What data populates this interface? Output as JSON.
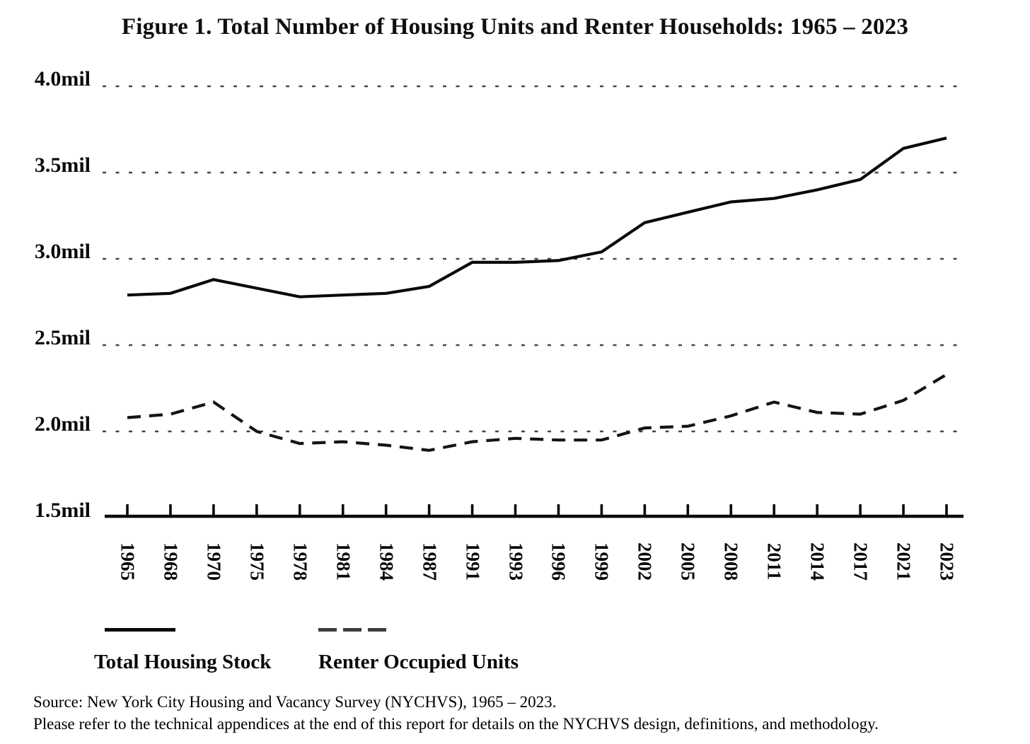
{
  "title": "Figure 1. Total Number of Housing Units and Renter Households: 1965 – 2023",
  "legend": {
    "series1_label": "Total Housing Stock",
    "series2_label": "Renter Occupied Units"
  },
  "source": {
    "line1": "Source: New York City Housing and Vacancy Survey (NYCHVS), 1965 – 2023.",
    "line2": "Please refer to the technical appendices at the end of this report for details on the NYCHVS design, definitions, and methodology."
  },
  "colors": {
    "background": "#ffffff",
    "solid_line": "#0a0a0a",
    "dashed_line": "#141414",
    "grid": "#474747",
    "text": "#0a0a0a"
  },
  "chart_data": {
    "type": "line",
    "title": "Figure 1. Total Number of Housing Units and Renter Households: 1965 – 2023",
    "x": [
      1965,
      1968,
      1970,
      1975,
      1978,
      1981,
      1984,
      1987,
      1991,
      1993,
      1996,
      1999,
      2002,
      2005,
      2008,
      2011,
      2014,
      2017,
      2021,
      2023
    ],
    "series": [
      {
        "name": "Total Housing Stock",
        "style": "solid",
        "color": "#0a0a0a",
        "unit": "millions",
        "values": [
          2.79,
          2.8,
          2.88,
          2.83,
          2.78,
          2.79,
          2.8,
          2.84,
          2.98,
          2.98,
          2.99,
          3.04,
          3.21,
          3.27,
          3.33,
          3.35,
          3.4,
          3.46,
          3.64,
          3.7
        ]
      },
      {
        "name": "Renter Occupied Units",
        "style": "dashed",
        "color": "#141414",
        "unit": "millions",
        "values": [
          2.08,
          2.1,
          2.17,
          2.0,
          1.93,
          1.94,
          1.92,
          1.89,
          1.94,
          1.96,
          1.95,
          1.95,
          2.02,
          2.03,
          2.09,
          2.17,
          2.11,
          2.1,
          2.18,
          2.33
        ]
      }
    ],
    "xlabel": "",
    "ylabel": "",
    "ylim": [
      1.5,
      4.0
    ],
    "y_axis": {
      "ticks": [
        {
          "label": "4.0mil",
          "value": 4.0
        },
        {
          "label": "3.5mil",
          "value": 3.5
        },
        {
          "label": "3.0mil",
          "value": 3.0
        },
        {
          "label": "2.5mil",
          "value": 2.5
        },
        {
          "label": "2.0mil",
          "value": 2.0
        },
        {
          "label": "1.5mil",
          "value": 1.5
        }
      ]
    },
    "grid": "dotted horizontal gridlines at 2.0, 2.5, 3.0, 3.5, 4.0",
    "legend_position": "bottom-left"
  }
}
